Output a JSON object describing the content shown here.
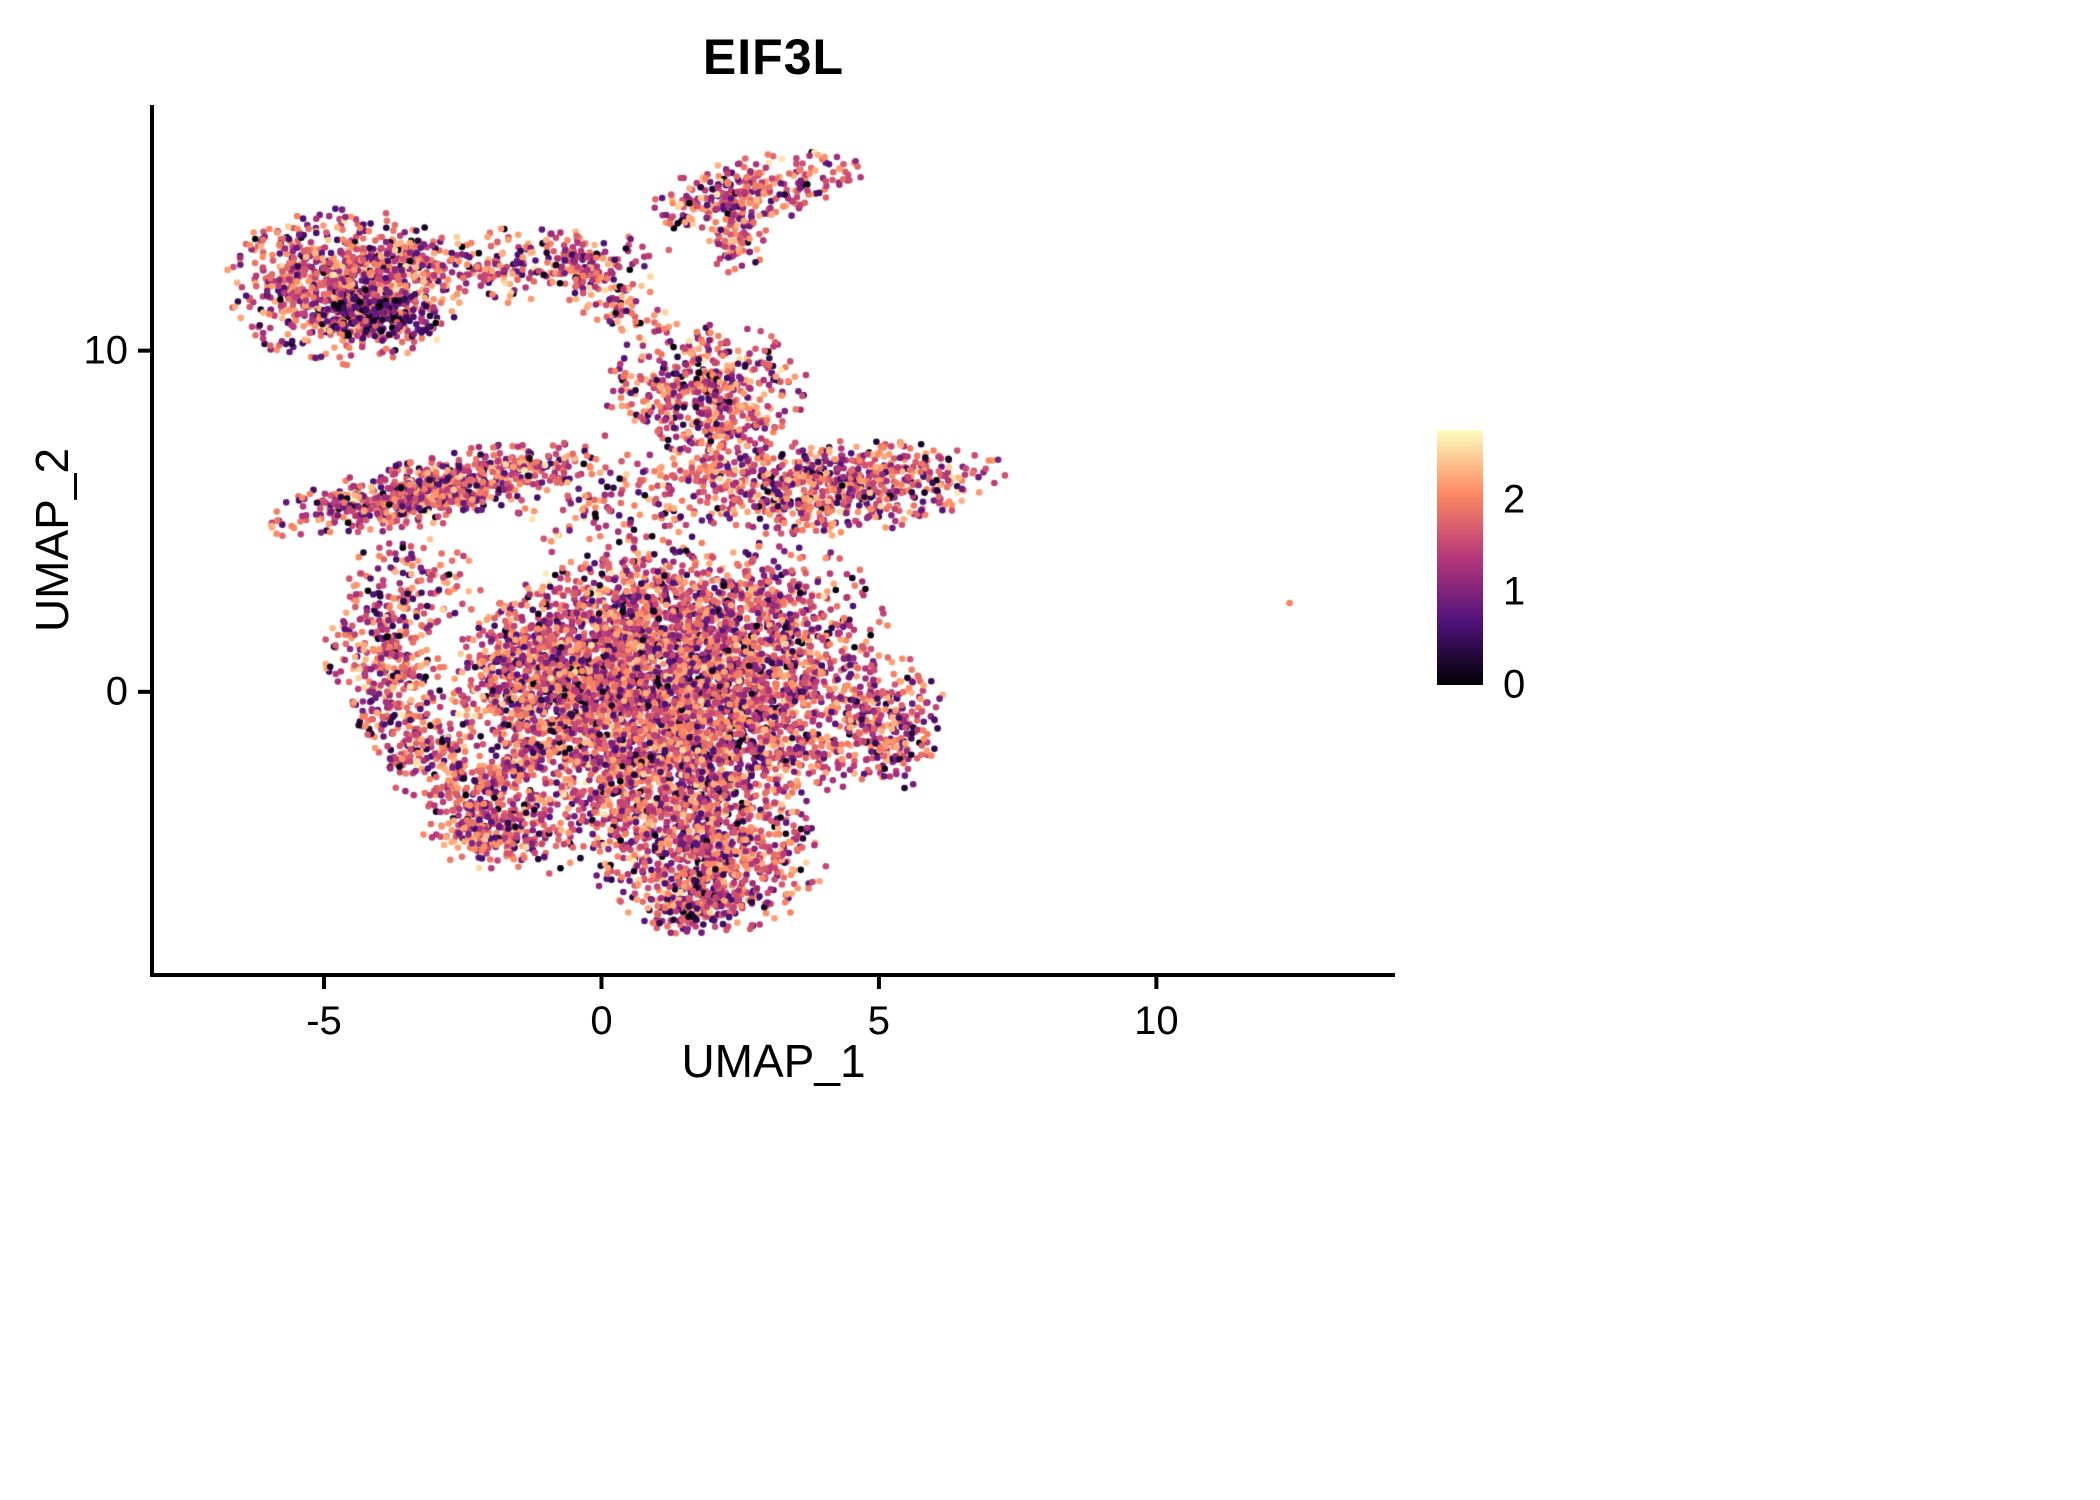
{
  "chart_data": {
    "type": "scatter",
    "title": "EIF3L",
    "xlabel": "UMAP_1",
    "ylabel": "UMAP_2",
    "xlim": [
      -8.1,
      14.3
    ],
    "ylim": [
      -8.3,
      17.2
    ],
    "x_ticks": [
      -5,
      0,
      5,
      10
    ],
    "y_ticks": [
      0,
      10
    ],
    "grid": false,
    "background": "#ffffff",
    "point_radius_px": 3.3,
    "seed": 20230407,
    "legend": {
      "position": "right",
      "vmin": 0,
      "vmax": 2.75,
      "tick_values": [
        2,
        1,
        0
      ],
      "colormap": "magma",
      "stops": [
        {
          "t": 0.0,
          "color": "#000004"
        },
        {
          "t": 0.25,
          "color": "#51127c"
        },
        {
          "t": 0.5,
          "color": "#b73779"
        },
        {
          "t": 0.75,
          "color": "#fc8961"
        },
        {
          "t": 1.0,
          "color": "#fcfdbf"
        }
      ]
    },
    "clusters": [
      {
        "name": "top-left-blob",
        "cx": -4.6,
        "cy": 11.9,
        "sx": 1.0,
        "sy": 1.1,
        "rot": 0,
        "n": 1050,
        "profile": "normal"
      },
      {
        "name": "top-left-dark-core",
        "cx": -4.0,
        "cy": 11.1,
        "sx": 0.5,
        "sy": 0.38,
        "rot": -10,
        "n": 210,
        "profile": "low"
      },
      {
        "name": "top-left-trail",
        "cx": -1.7,
        "cy": 12.5,
        "sx": 1.4,
        "sy": 0.5,
        "rot": 5,
        "n": 270,
        "profile": "normal"
      },
      {
        "name": "top-stream",
        "cx": 0.0,
        "cy": 11.9,
        "sx": 0.85,
        "sy": 0.35,
        "rot": -55,
        "n": 170,
        "profile": "normal"
      },
      {
        "name": "top-right-cluster",
        "cx": 2.7,
        "cy": 14.7,
        "sx": 0.95,
        "sy": 0.45,
        "rot": 20,
        "n": 310,
        "profile": "normal"
      },
      {
        "name": "top-right-tail",
        "cx": 2.4,
        "cy": 13.2,
        "sx": 0.28,
        "sy": 0.6,
        "rot": 0,
        "n": 90,
        "profile": "normal"
      },
      {
        "name": "mid-blob",
        "cx": 1.9,
        "cy": 8.9,
        "sx": 0.85,
        "sy": 0.95,
        "rot": 0,
        "n": 520,
        "profile": "normal"
      },
      {
        "name": "mid-blob-tail",
        "cx": 2.3,
        "cy": 7.5,
        "sx": 0.38,
        "sy": 0.75,
        "rot": 0,
        "n": 130,
        "profile": "normal"
      },
      {
        "name": "left-band",
        "cx": -3.1,
        "cy": 5.9,
        "sx": 1.45,
        "sy": 0.45,
        "rot": 20,
        "n": 820,
        "profile": "normal"
      },
      {
        "name": "band-bridge",
        "cx": 0.3,
        "cy": 5.6,
        "sx": 1.0,
        "sy": 0.9,
        "rot": 0,
        "n": 160,
        "profile": "normal"
      },
      {
        "name": "right-band",
        "cx": 4.1,
        "cy": 6.0,
        "sx": 1.5,
        "sy": 0.65,
        "rot": 8,
        "n": 820,
        "profile": "normal"
      },
      {
        "name": "central-mass-a",
        "cx": 0.2,
        "cy": 0.6,
        "sx": 1.3,
        "sy": 1.4,
        "rot": 0,
        "n": 1750,
        "profile": "normal"
      },
      {
        "name": "central-mass-b",
        "cx": 2.3,
        "cy": -0.6,
        "sx": 1.4,
        "sy": 1.4,
        "rot": 0,
        "n": 1550,
        "profile": "normal"
      },
      {
        "name": "central-mass-c",
        "cx": 0.8,
        "cy": -2.6,
        "sx": 1.3,
        "sy": 1.0,
        "rot": 0,
        "n": 950,
        "profile": "normal"
      },
      {
        "name": "central-mass-d",
        "cx": 3.2,
        "cy": 1.8,
        "sx": 0.9,
        "sy": 1.2,
        "rot": 0,
        "n": 560,
        "profile": "normal"
      },
      {
        "name": "central-mass-e",
        "cx": 1.2,
        "cy": 2.9,
        "sx": 1.2,
        "sy": 0.8,
        "rot": 0,
        "n": 460,
        "profile": "normal"
      },
      {
        "name": "central-mass-f",
        "cx": -1.2,
        "cy": 0.0,
        "sx": 0.7,
        "sy": 1.2,
        "rot": 0,
        "n": 420,
        "profile": "normal"
      },
      {
        "name": "right-appendage",
        "cx": 5.2,
        "cy": -0.9,
        "sx": 0.5,
        "sy": 0.9,
        "rot": 0,
        "n": 270,
        "profile": "normal"
      },
      {
        "name": "bottom-blob",
        "cx": 2.0,
        "cy": -4.9,
        "sx": 1.0,
        "sy": 1.0,
        "rot": 0,
        "n": 820,
        "profile": "normal"
      },
      {
        "name": "bottom-tip",
        "cx": 1.7,
        "cy": -6.3,
        "sx": 0.5,
        "sy": 0.4,
        "rot": 0,
        "n": 140,
        "profile": "normal"
      },
      {
        "name": "left-crescent-top",
        "cx": -3.9,
        "cy": 0.8,
        "sx": 0.5,
        "sy": 1.0,
        "rot": 10,
        "n": 310,
        "profile": "normal"
      },
      {
        "name": "left-crescent-mid",
        "cx": -3.1,
        "cy": -1.8,
        "sx": 0.5,
        "sy": 1.0,
        "rot": 30,
        "n": 260,
        "profile": "normal"
      },
      {
        "name": "left-crescent-bottom",
        "cx": -2.0,
        "cy": -3.9,
        "sx": 0.6,
        "sy": 0.5,
        "rot": 30,
        "n": 210,
        "profile": "normal"
      },
      {
        "name": "crescent-inner-streak",
        "cx": -1.9,
        "cy": -2.4,
        "sx": 0.7,
        "sy": 0.28,
        "rot": 35,
        "n": 130,
        "profile": "normal"
      },
      {
        "name": "crescent-bridge",
        "cx": -3.4,
        "cy": 3.0,
        "sx": 0.6,
        "sy": 0.7,
        "rot": 0,
        "n": 150,
        "profile": "normal"
      },
      {
        "name": "bottom-left-sparse",
        "cx": -1.3,
        "cy": -4.3,
        "sx": 0.6,
        "sy": 0.55,
        "rot": 0,
        "n": 100,
        "profile": "normal"
      }
    ],
    "outliers": [
      {
        "x": 12.4,
        "y": 2.6,
        "value": 2.0
      }
    ]
  }
}
